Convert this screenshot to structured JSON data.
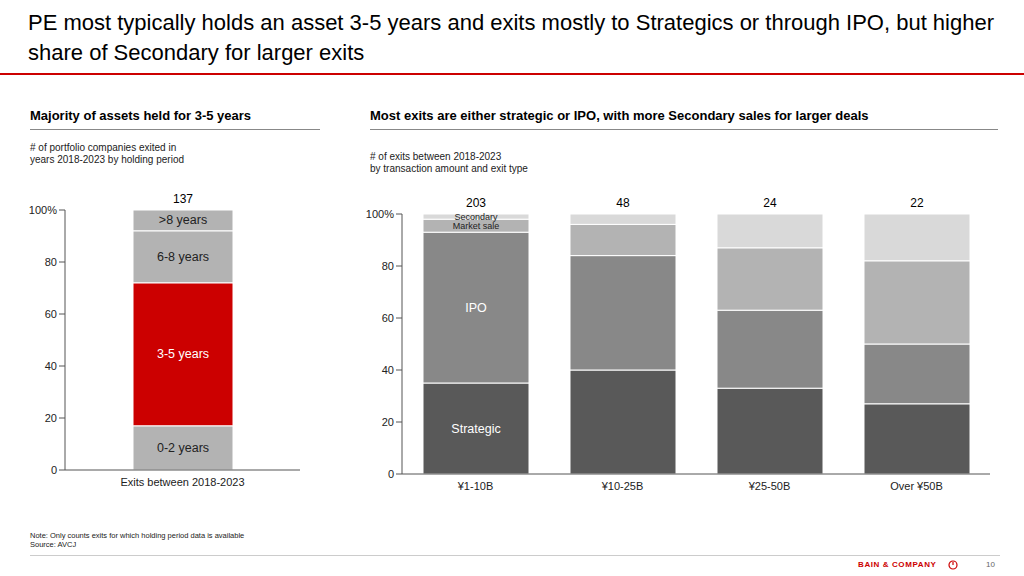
{
  "slide": {
    "title": "PE most typically holds an asset 3-5 years and exits mostly to Strategics or through IPO, but higher share of Secondary for larger exits",
    "note": "Note: Only counts exits for which holding period data is available",
    "source": "Source: AVCJ",
    "brand": "BAIN & COMPANY",
    "page": 10
  },
  "chart_data": [
    {
      "type": "bar",
      "stacked": true,
      "title": "Majority of assets held for 3-5 years",
      "subtitle": [
        "# of portfolio companies exited in",
        "years 2018-2023 by holding period"
      ],
      "categories": [
        "Exits between 2018-2023"
      ],
      "series": [
        {
          "name": "0-2 years",
          "color": "#b3b3b3",
          "values": [
            17
          ]
        },
        {
          "name": "3-5 years",
          "color": "#cc0000",
          "values": [
            55
          ]
        },
        {
          "name": "6-8 years",
          "color": "#b3b3b3",
          "values": [
            20
          ]
        },
        {
          "name": ">8 years",
          "color": "#b3b3b3",
          "values": [
            8
          ]
        }
      ],
      "totals": [
        137
      ],
      "ylim": [
        0,
        100
      ],
      "yticks": [
        0,
        20,
        40,
        60,
        80,
        {
          "value": 100,
          "label": "100%"
        }
      ]
    },
    {
      "type": "bar",
      "stacked": true,
      "title": "Most exits are either strategic or IPO, with more Secondary sales for larger deals",
      "subtitle": [
        "# of exits between 2018-2023",
        "by transaction amount and exit type"
      ],
      "categories": [
        "¥1-10B",
        "¥10-25B",
        "¥25-50B",
        "Over ¥50B"
      ],
      "series": [
        {
          "name": "Strategic",
          "color": "#595959",
          "values": [
            35,
            40,
            33,
            27
          ]
        },
        {
          "name": "IPO",
          "color": "#888888",
          "values": [
            58,
            44,
            30,
            23
          ]
        },
        {
          "name": "Market sale",
          "color": "#b3b3b3",
          "values": [
            5,
            12,
            24,
            32
          ]
        },
        {
          "name": "Secondary",
          "color": "#d9d9d9",
          "values": [
            2,
            4,
            13,
            18
          ]
        }
      ],
      "totals": [
        203,
        48,
        24,
        22
      ],
      "ylim": [
        0,
        100
      ],
      "yticks": [
        0,
        20,
        40,
        60,
        80,
        {
          "value": 100,
          "label": "100%"
        }
      ]
    }
  ]
}
